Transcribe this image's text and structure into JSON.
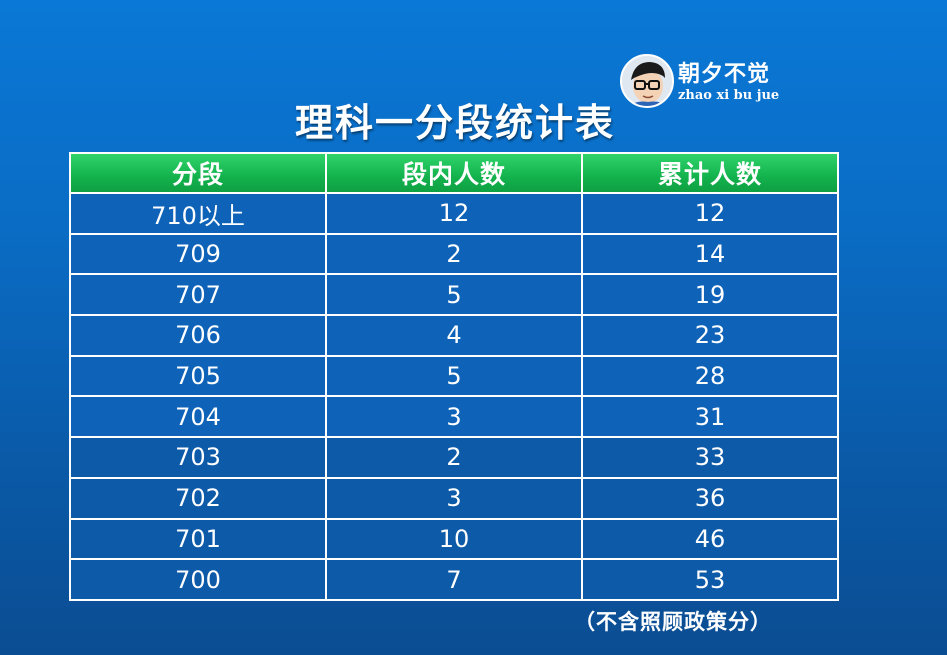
{
  "brand": {
    "name": "朝夕不觉",
    "pinyin": "zhao xi bu jue"
  },
  "title": "理科一分段统计表",
  "table": {
    "headers": [
      "分段",
      "段内人数",
      "累计人数"
    ],
    "rows": [
      [
        "710以上",
        "12",
        "12"
      ],
      [
        "709",
        "2",
        "14"
      ],
      [
        "707",
        "5",
        "19"
      ],
      [
        "706",
        "4",
        "23"
      ],
      [
        "705",
        "5",
        "28"
      ],
      [
        "704",
        "3",
        "31"
      ],
      [
        "703",
        "2",
        "33"
      ],
      [
        "702",
        "3",
        "36"
      ],
      [
        "701",
        "10",
        "46"
      ],
      [
        "700",
        "7",
        "53"
      ]
    ]
  },
  "footnote": "（不含照顾政策分）",
  "colors": {
    "header_green": "#13b24d",
    "cell_blue": "#0e63b9",
    "background": "#0a6cc4"
  }
}
